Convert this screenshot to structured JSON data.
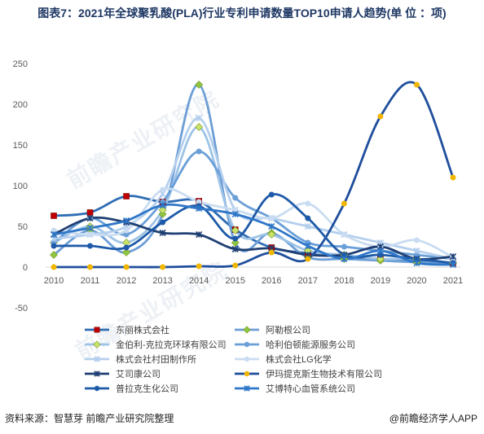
{
  "title": "图表7：2021年全球聚乳酸(PLA)行业专利申请数量TOP10申请人趋势(单 位 ：项)",
  "footer": {
    "source": "资料来源：智慧芽 前瞻产业研究院整理",
    "brand": "@前瞻经济学人APP"
  },
  "watermark": "前瞻产业研究院",
  "chart_data": {
    "type": "line",
    "title": "图表7：2021年全球聚乳酸(PLA)行业专利申请数量TOP10申请人趋势(单 位 ：项)",
    "x": [
      2010,
      2011,
      2012,
      2013,
      2014,
      2015,
      2016,
      2017,
      2018,
      2019,
      2020,
      2021
    ],
    "ylim": [
      -50,
      250
    ],
    "yticks": [
      -50,
      0,
      50,
      100,
      150,
      200,
      250
    ],
    "grid": false,
    "legend_position": "bottom",
    "series": [
      {
        "name": "东丽株式会社",
        "color": "#2e6db4",
        "marker": "square",
        "markerColor": "#c00000",
        "values": [
          63,
          67,
          87,
          80,
          81,
          46,
          24,
          17,
          13,
          10,
          8,
          5
        ]
      },
      {
        "name": "阿勒根公司",
        "color": "#6d9ed6",
        "marker": "diamond",
        "markerColor": "#8ec63f",
        "values": [
          15,
          45,
          18,
          65,
          224,
          30,
          42,
          12,
          10,
          8,
          6,
          5
        ]
      },
      {
        "name": "金伯利-克拉克环球有限公司",
        "color": "#9dc3e6",
        "marker": "diamond",
        "markerColor": "#c9e36b",
        "values": [
          30,
          50,
          30,
          70,
          172,
          45,
          40,
          20,
          15,
          10,
          10,
          5
        ]
      },
      {
        "name": "哈利伯顿能源服务公司",
        "color": "#6a9fd8",
        "marker": "circle",
        "markerColor": "#6a9fd8",
        "values": [
          30,
          60,
          40,
          80,
          142,
          85,
          60,
          30,
          25,
          20,
          15,
          10
        ]
      },
      {
        "name": "株式会社村田制作所",
        "color": "#b4cfee",
        "marker": "x",
        "markerColor": "#b4cfee",
        "values": [
          35,
          40,
          50,
          90,
          183,
          70,
          60,
          50,
          40,
          30,
          20,
          10
        ]
      },
      {
        "name": "株式会社LG化学",
        "color": "#c9dcf2",
        "marker": "circle",
        "markerColor": "#c9dcf2",
        "values": [
          45,
          40,
          45,
          95,
          80,
          70,
          60,
          78,
          40,
          25,
          33,
          12
        ]
      },
      {
        "name": "艾司康公司",
        "color": "#1f3f73",
        "marker": "x",
        "markerColor": "#1f3f73",
        "values": [
          40,
          60,
          55,
          42,
          40,
          22,
          23,
          15,
          15,
          25,
          10,
          13
        ]
      },
      {
        "name": "伊玛提克斯生物技术有限公司",
        "color": "#1f4e9c",
        "marker": "circle",
        "markerColor": "#f2b600",
        "values": [
          0,
          0,
          0,
          0,
          1,
          2,
          18,
          10,
          78,
          185,
          224,
          110
        ]
      },
      {
        "name": "普拉克生化公司",
        "color": "#1e5aa8",
        "marker": "circle",
        "markerColor": "#1e5aa8",
        "values": [
          26,
          26,
          24,
          55,
          75,
          35,
          89,
          60,
          15,
          15,
          10,
          5
        ]
      },
      {
        "name": "艾博特心血管系统公司",
        "color": "#2f77c8",
        "marker": "x",
        "markerColor": "#2f77c8",
        "values": [
          40,
          48,
          57,
          76,
          72,
          65,
          50,
          26,
          10,
          20,
          5,
          3
        ]
      }
    ]
  }
}
